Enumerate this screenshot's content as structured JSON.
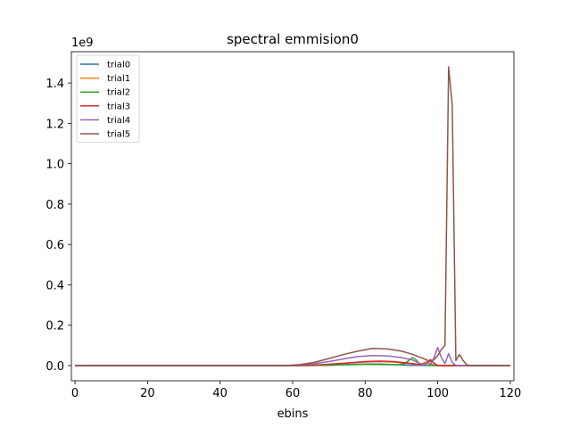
{
  "chart_data": {
    "type": "line",
    "title": "spectral emmision0",
    "xlabel": "ebins",
    "ylabel": "",
    "y_offset_text": "1e9",
    "xlim": [
      -1,
      121
    ],
    "ylim": [
      -0.075,
      1.555
    ],
    "xticks": [
      0,
      20,
      40,
      60,
      80,
      100,
      120
    ],
    "yticks": [
      0.0,
      0.2,
      0.4,
      0.6,
      0.8,
      1.0,
      1.2,
      1.4
    ],
    "ytick_labels": [
      "0.0",
      "0.2",
      "0.4",
      "0.6",
      "0.8",
      "1.0",
      "1.2",
      "1.4"
    ],
    "legend_position": "upper-left",
    "grid": false,
    "series": [
      {
        "name": "trial0",
        "color": "#1f77b4",
        "points": [
          [
            0,
            0
          ],
          [
            60,
            0
          ],
          [
            65,
            0.0005
          ],
          [
            70,
            0.002
          ],
          [
            75,
            0.005
          ],
          [
            80,
            0.008
          ],
          [
            84,
            0.008
          ],
          [
            88,
            0.005
          ],
          [
            92,
            0.002
          ],
          [
            95,
            0.001
          ],
          [
            100,
            0
          ],
          [
            120,
            0
          ]
        ]
      },
      {
        "name": "trial1",
        "color": "#ff7f0e",
        "points": [
          [
            0,
            0
          ],
          [
            60,
            0
          ],
          [
            65,
            0.001
          ],
          [
            70,
            0.005
          ],
          [
            75,
            0.012
          ],
          [
            80,
            0.018
          ],
          [
            84,
            0.02
          ],
          [
            88,
            0.017
          ],
          [
            92,
            0.01
          ],
          [
            95,
            0.004
          ],
          [
            97,
            0.02
          ],
          [
            98,
            0.008
          ],
          [
            100,
            0
          ],
          [
            120,
            0
          ]
        ]
      },
      {
        "name": "trial2",
        "color": "#2ca02c",
        "points": [
          [
            0,
            0
          ],
          [
            60,
            0
          ],
          [
            65,
            0.0005
          ],
          [
            70,
            0.002
          ],
          [
            75,
            0.004
          ],
          [
            80,
            0.006
          ],
          [
            85,
            0.005
          ],
          [
            89,
            0.004
          ],
          [
            91,
            0.01
          ],
          [
            93,
            0.04
          ],
          [
            94,
            0.03
          ],
          [
            95,
            0.005
          ],
          [
            97,
            0.002
          ],
          [
            100,
            0
          ],
          [
            120,
            0
          ]
        ]
      },
      {
        "name": "trial3",
        "color": "#d62728",
        "points": [
          [
            0,
            0
          ],
          [
            60,
            0
          ],
          [
            65,
            0.002
          ],
          [
            70,
            0.007
          ],
          [
            75,
            0.013
          ],
          [
            80,
            0.02
          ],
          [
            84,
            0.022
          ],
          [
            88,
            0.02
          ],
          [
            92,
            0.012
          ],
          [
            95,
            0.005
          ],
          [
            97,
            0.01
          ],
          [
            98,
            0.03
          ],
          [
            99,
            0.012
          ],
          [
            100,
            0
          ],
          [
            120,
            0
          ]
        ]
      },
      {
        "name": "trial4",
        "color": "#9467bd",
        "points": [
          [
            0,
            0
          ],
          [
            58,
            0
          ],
          [
            62,
            0.003
          ],
          [
            66,
            0.01
          ],
          [
            70,
            0.02
          ],
          [
            74,
            0.033
          ],
          [
            78,
            0.045
          ],
          [
            82,
            0.05
          ],
          [
            86,
            0.048
          ],
          [
            90,
            0.04
          ],
          [
            93,
            0.028
          ],
          [
            95,
            0.012
          ],
          [
            96,
            0.003
          ],
          [
            97,
            0.015
          ],
          [
            98,
            0.005
          ],
          [
            99,
            0.04
          ],
          [
            100,
            0.09
          ],
          [
            101,
            0.04
          ],
          [
            102,
            0.01
          ],
          [
            103,
            0.06
          ],
          [
            104,
            0.015
          ],
          [
            105,
            0.002
          ],
          [
            106,
            0
          ],
          [
            120,
            0
          ]
        ]
      },
      {
        "name": "trial5",
        "color": "#8c564b",
        "points": [
          [
            0,
            0
          ],
          [
            58,
            0
          ],
          [
            62,
            0.005
          ],
          [
            66,
            0.016
          ],
          [
            70,
            0.035
          ],
          [
            74,
            0.055
          ],
          [
            78,
            0.072
          ],
          [
            82,
            0.085
          ],
          [
            86,
            0.083
          ],
          [
            90,
            0.072
          ],
          [
            93,
            0.056
          ],
          [
            96,
            0.035
          ],
          [
            98,
            0.02
          ],
          [
            99,
            0.03
          ],
          [
            100,
            0.05
          ],
          [
            101,
            0.08
          ],
          [
            102,
            0.1
          ],
          [
            103,
            1.48
          ],
          [
            104,
            1.29
          ],
          [
            105,
            0.025
          ],
          [
            106,
            0.055
          ],
          [
            107,
            0.025
          ],
          [
            108,
            0.004
          ],
          [
            109,
            0
          ],
          [
            120,
            0
          ]
        ]
      }
    ]
  }
}
